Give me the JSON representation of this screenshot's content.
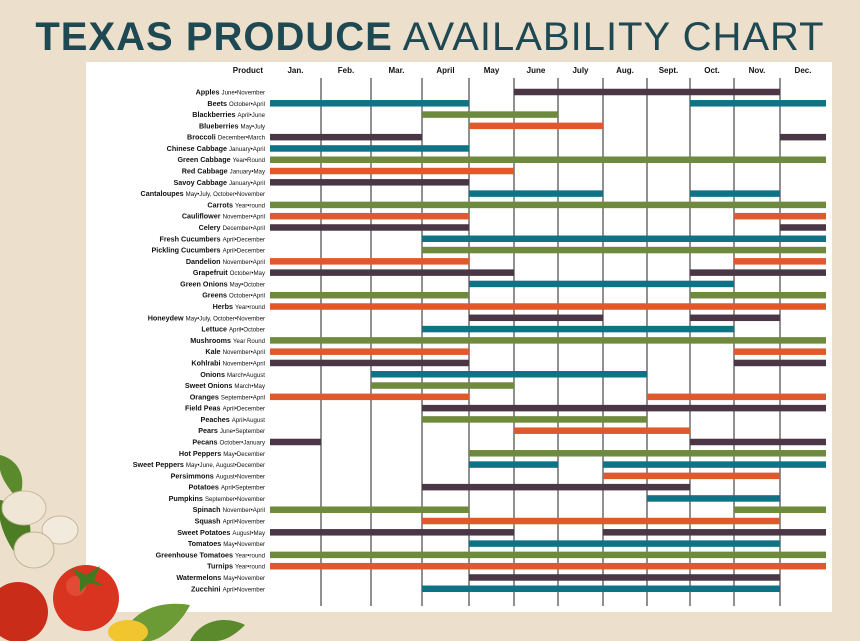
{
  "header": {
    "title_bold": "TEXAS PRODUCE",
    "title_light": "AVAILABILITY CHART"
  },
  "colors": {
    "teal": "#0e7385",
    "green": "#6e8a3c",
    "orange": "#e0592a",
    "plum": "#4a3645",
    "title": "#1f4952"
  },
  "chart_data": {
    "type": "gantt",
    "title": "TEXAS PRODUCE AVAILABILITY CHART",
    "column_header": "Product",
    "months": [
      "Jan.",
      "Feb.",
      "Mar.",
      "April",
      "May",
      "June",
      "July",
      "Aug.",
      "Sept.",
      "Oct.",
      "Nov.",
      "Dec."
    ],
    "items": [
      {
        "name": "Apples",
        "season": "June•November",
        "color": "plum",
        "ranges": [
          [
            6,
            11
          ]
        ]
      },
      {
        "name": "Beets",
        "season": "October•April",
        "color": "teal",
        "ranges": [
          [
            1,
            4
          ],
          [
            10,
            12
          ]
        ]
      },
      {
        "name": "Blackberries",
        "season": "April•June",
        "color": "green",
        "ranges": [
          [
            4,
            6
          ]
        ]
      },
      {
        "name": "Blueberries",
        "season": "May•July",
        "color": "orange",
        "ranges": [
          [
            5,
            7
          ]
        ]
      },
      {
        "name": "Broccoli",
        "season": "December•March",
        "color": "plum",
        "ranges": [
          [
            1,
            3
          ],
          [
            12,
            12
          ]
        ]
      },
      {
        "name": "Chinese Cabbage",
        "season": "January•April",
        "color": "teal",
        "ranges": [
          [
            1,
            4
          ]
        ]
      },
      {
        "name": "Green Cabbage",
        "season": "Year•Round",
        "color": "green",
        "ranges": [
          [
            1,
            12
          ]
        ]
      },
      {
        "name": "Red Cabbage",
        "season": "January•May",
        "color": "orange",
        "ranges": [
          [
            1,
            5
          ]
        ]
      },
      {
        "name": "Savoy Cabbage",
        "season": "January•April",
        "color": "plum",
        "ranges": [
          [
            1,
            4
          ]
        ]
      },
      {
        "name": "Cantaloupes",
        "season": "May•July, October•November",
        "color": "teal",
        "ranges": [
          [
            5,
            7
          ],
          [
            10,
            11
          ]
        ]
      },
      {
        "name": "Carrots",
        "season": "Year•round",
        "color": "green",
        "ranges": [
          [
            1,
            12
          ]
        ]
      },
      {
        "name": "Cauliflower",
        "season": "November•April",
        "color": "orange",
        "ranges": [
          [
            1,
            4
          ],
          [
            11,
            12
          ]
        ]
      },
      {
        "name": "Celery",
        "season": "December•April",
        "color": "plum",
        "ranges": [
          [
            1,
            4
          ],
          [
            12,
            12
          ]
        ]
      },
      {
        "name": "Fresh Cucumbers",
        "season": "April•December",
        "color": "teal",
        "ranges": [
          [
            4,
            12
          ]
        ]
      },
      {
        "name": "Pickling Cucumbers",
        "season": "April•December",
        "color": "green",
        "ranges": [
          [
            4,
            12
          ]
        ]
      },
      {
        "name": "Dandelion",
        "season": "November•April",
        "color": "orange",
        "ranges": [
          [
            1,
            4
          ],
          [
            11,
            12
          ]
        ]
      },
      {
        "name": "Grapefruit",
        "season": "October•May",
        "color": "plum",
        "ranges": [
          [
            1,
            5
          ],
          [
            10,
            12
          ]
        ]
      },
      {
        "name": "Green Onions",
        "season": "May•October",
        "color": "teal",
        "ranges": [
          [
            5,
            10
          ]
        ]
      },
      {
        "name": "Greens",
        "season": "October•April",
        "color": "green",
        "ranges": [
          [
            1,
            4
          ],
          [
            10,
            12
          ]
        ]
      },
      {
        "name": "Herbs",
        "season": "Year•round",
        "color": "orange",
        "ranges": [
          [
            1,
            12
          ]
        ]
      },
      {
        "name": "Honeydew",
        "season": "May•July, October•November",
        "color": "plum",
        "ranges": [
          [
            5,
            7
          ],
          [
            10,
            11
          ]
        ]
      },
      {
        "name": "Lettuce",
        "season": "April•October",
        "color": "teal",
        "ranges": [
          [
            4,
            10
          ]
        ]
      },
      {
        "name": "Mushrooms",
        "season": "Year Round",
        "color": "green",
        "ranges": [
          [
            1,
            12
          ]
        ]
      },
      {
        "name": "Kale",
        "season": "November•April",
        "color": "orange",
        "ranges": [
          [
            1,
            4
          ],
          [
            11,
            12
          ]
        ]
      },
      {
        "name": "Kohlrabi",
        "season": "November•April",
        "color": "plum",
        "ranges": [
          [
            1,
            4
          ],
          [
            11,
            12
          ]
        ]
      },
      {
        "name": "Onions",
        "season": "March•August",
        "color": "teal",
        "ranges": [
          [
            3,
            8
          ]
        ]
      },
      {
        "name": "Sweet Onions",
        "season": "March•May",
        "color": "green",
        "ranges": [
          [
            3,
            5
          ]
        ]
      },
      {
        "name": "Oranges",
        "season": "September•April",
        "color": "orange",
        "ranges": [
          [
            1,
            4
          ],
          [
            9,
            12
          ]
        ]
      },
      {
        "name": "Field Peas",
        "season": "April•December",
        "color": "plum",
        "ranges": [
          [
            4,
            12
          ]
        ]
      },
      {
        "name": "Peaches",
        "season": "April•August",
        "color": "green",
        "ranges": [
          [
            4,
            8
          ]
        ]
      },
      {
        "name": "Pears",
        "season": "June•September",
        "color": "orange",
        "ranges": [
          [
            6,
            9
          ]
        ]
      },
      {
        "name": "Pecans",
        "season": "October•January",
        "color": "plum",
        "ranges": [
          [
            1,
            1
          ],
          [
            10,
            12
          ]
        ]
      },
      {
        "name": "Hot Peppers",
        "season": "May•December",
        "color": "green",
        "ranges": [
          [
            5,
            12
          ]
        ]
      },
      {
        "name": "Sweet Peppers",
        "season": "May•June, August•December",
        "color": "teal",
        "ranges": [
          [
            5,
            6
          ],
          [
            8,
            12
          ]
        ]
      },
      {
        "name": "Persimmons",
        "season": "August•November",
        "color": "orange",
        "ranges": [
          [
            8,
            11
          ]
        ]
      },
      {
        "name": "Potatoes",
        "season": "April•September",
        "color": "plum",
        "ranges": [
          [
            4,
            9
          ]
        ]
      },
      {
        "name": "Pumpkins",
        "season": "September•November",
        "color": "teal",
        "ranges": [
          [
            9,
            11
          ]
        ]
      },
      {
        "name": "Spinach",
        "season": "November•April",
        "color": "green",
        "ranges": [
          [
            1,
            4
          ],
          [
            11,
            12
          ]
        ]
      },
      {
        "name": "Squash",
        "season": "April•November",
        "color": "orange",
        "ranges": [
          [
            4,
            11
          ]
        ]
      },
      {
        "name": "Sweet Potatoes",
        "season": "August•May",
        "color": "plum",
        "ranges": [
          [
            1,
            5
          ],
          [
            8,
            12
          ]
        ]
      },
      {
        "name": "Tomatoes",
        "season": "May•November",
        "color": "teal",
        "ranges": [
          [
            5,
            11
          ]
        ]
      },
      {
        "name": "Greenhouse Tomatoes",
        "season": "Year•round",
        "color": "green",
        "ranges": [
          [
            1,
            12
          ]
        ]
      },
      {
        "name": "Turnips",
        "season": "Year•round",
        "color": "orange",
        "ranges": [
          [
            1,
            12
          ]
        ]
      },
      {
        "name": "Watermelons",
        "season": "May•November",
        "color": "plum",
        "ranges": [
          [
            5,
            11
          ]
        ]
      },
      {
        "name": "Zucchini",
        "season": "April•November",
        "color": "teal",
        "ranges": [
          [
            4,
            11
          ]
        ]
      }
    ]
  }
}
